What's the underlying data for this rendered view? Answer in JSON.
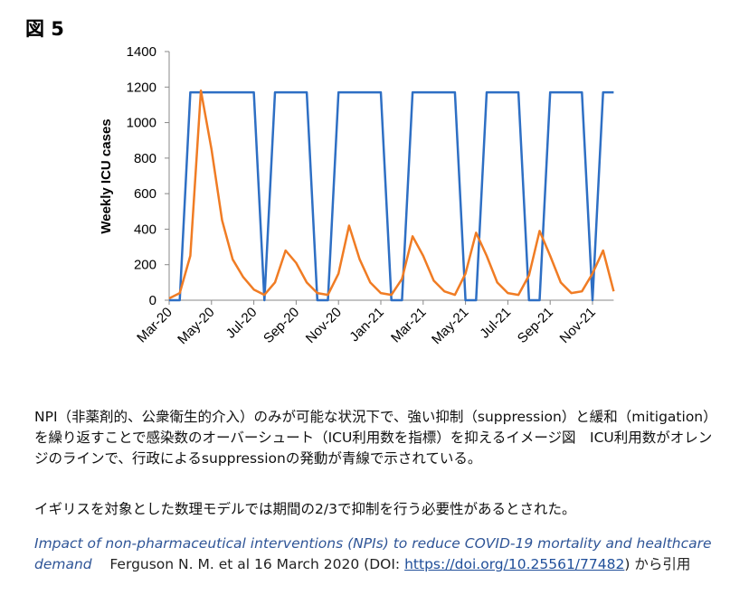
{
  "heading": "図 5",
  "chart_data": {
    "type": "line",
    "ylabel": "Weekly ICU cases",
    "categories": [
      "Mar-20",
      null,
      null,
      null,
      "May-20",
      null,
      null,
      null,
      "Jul-20",
      null,
      null,
      null,
      "Sep-20",
      null,
      null,
      null,
      "Nov-20",
      null,
      null,
      null,
      "Jan-21",
      null,
      null,
      null,
      "Mar-21",
      null,
      null,
      null,
      "May-21",
      null,
      null,
      null,
      "Jul-21",
      null,
      null,
      null,
      "Sep-21",
      null,
      null,
      null,
      "Nov-21",
      null,
      null
    ],
    "series": [
      {
        "color": "#2e6fc4",
        "values": [
          0,
          0,
          1170,
          1170,
          1170,
          1170,
          1170,
          1170,
          1170,
          0,
          1170,
          1170,
          1170,
          1170,
          0,
          0,
          1170,
          1170,
          1170,
          1170,
          1170,
          0,
          0,
          1170,
          1170,
          1170,
          1170,
          1170,
          0,
          0,
          1170,
          1170,
          1170,
          1170,
          0,
          0,
          1170,
          1170,
          1170,
          1170,
          0,
          1170,
          1170
        ]
      },
      {
        "color": "#f07c24",
        "values": [
          10,
          40,
          250,
          1180,
          850,
          450,
          230,
          130,
          60,
          30,
          100,
          280,
          210,
          100,
          40,
          30,
          150,
          420,
          230,
          100,
          40,
          30,
          120,
          360,
          250,
          110,
          50,
          30,
          150,
          380,
          250,
          100,
          40,
          30,
          140,
          390,
          250,
          100,
          40,
          50,
          150,
          280,
          50
        ]
      }
    ],
    "ylim": [
      0,
      1400
    ],
    "yticks": [
      0,
      200,
      400,
      600,
      800,
      1000,
      1200,
      1400
    ],
    "grid": false
  },
  "caption": {
    "paragraphs": [
      "NPI（非薬剤的、公衆衛生的介入）のみが可能な状況下で、強い抑制（suppression）と緩和（mitigation）を繰り返すことで感染数のオーバーシュート（ICU利用数を指標）を抑えるイメージ図　ICU利用数がオレンジのラインで、行政によるsuppressionの発動が青線で示されている。",
      "イギリスを対象とした数理モデルでは期間の2/3で抑制を行う必要性があるとされた。"
    ],
    "citation": {
      "title": "Impact of non-pharmaceutical interventions (NPIs) to reduce COVID-19 mortality and healthcare demand",
      "authors": "Ferguson N. M. et al  16 March 2020 (DOI: ",
      "link": "https://doi.org/10.25561/77482",
      "suffix": ") から引用"
    }
  }
}
